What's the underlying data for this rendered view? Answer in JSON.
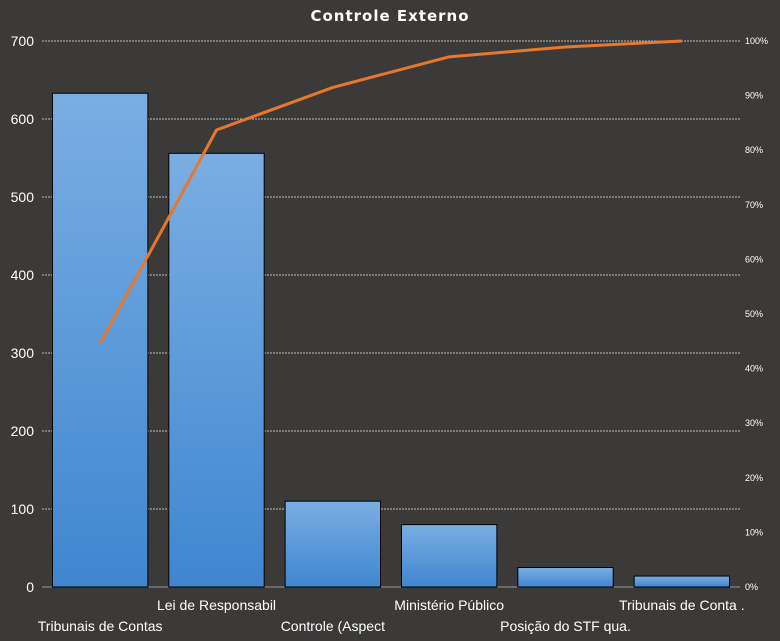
{
  "chart_data": {
    "type": "bar",
    "title": "Controle Externo",
    "categories": [
      "Tribunais de Contas",
      "Lei de Responsabil",
      "Controle (Aspect",
      "Ministério Público",
      "Posição do STF qua.",
      "Tribunais de Conta ."
    ],
    "series": [
      {
        "type": "bar",
        "values": [
          633,
          556,
          110,
          80,
          25,
          14
        ],
        "color": "#4a8fd4"
      },
      {
        "type": "line",
        "axis": "right",
        "values": [
          44.6,
          83.7,
          91.5,
          97.1,
          98.9,
          100
        ],
        "color": "#e8772e"
      }
    ],
    "ylim": [
      0,
      700
    ],
    "yticks": [
      0,
      100,
      200,
      300,
      400,
      500,
      600,
      700
    ],
    "y2lim": [
      0,
      100
    ],
    "y2ticks": [
      "0%",
      "10%",
      "20%",
      "30%",
      "40%",
      "50%",
      "60%",
      "70%",
      "80%",
      "90%",
      "100%"
    ],
    "grid": true,
    "background": "#3c3a38"
  }
}
